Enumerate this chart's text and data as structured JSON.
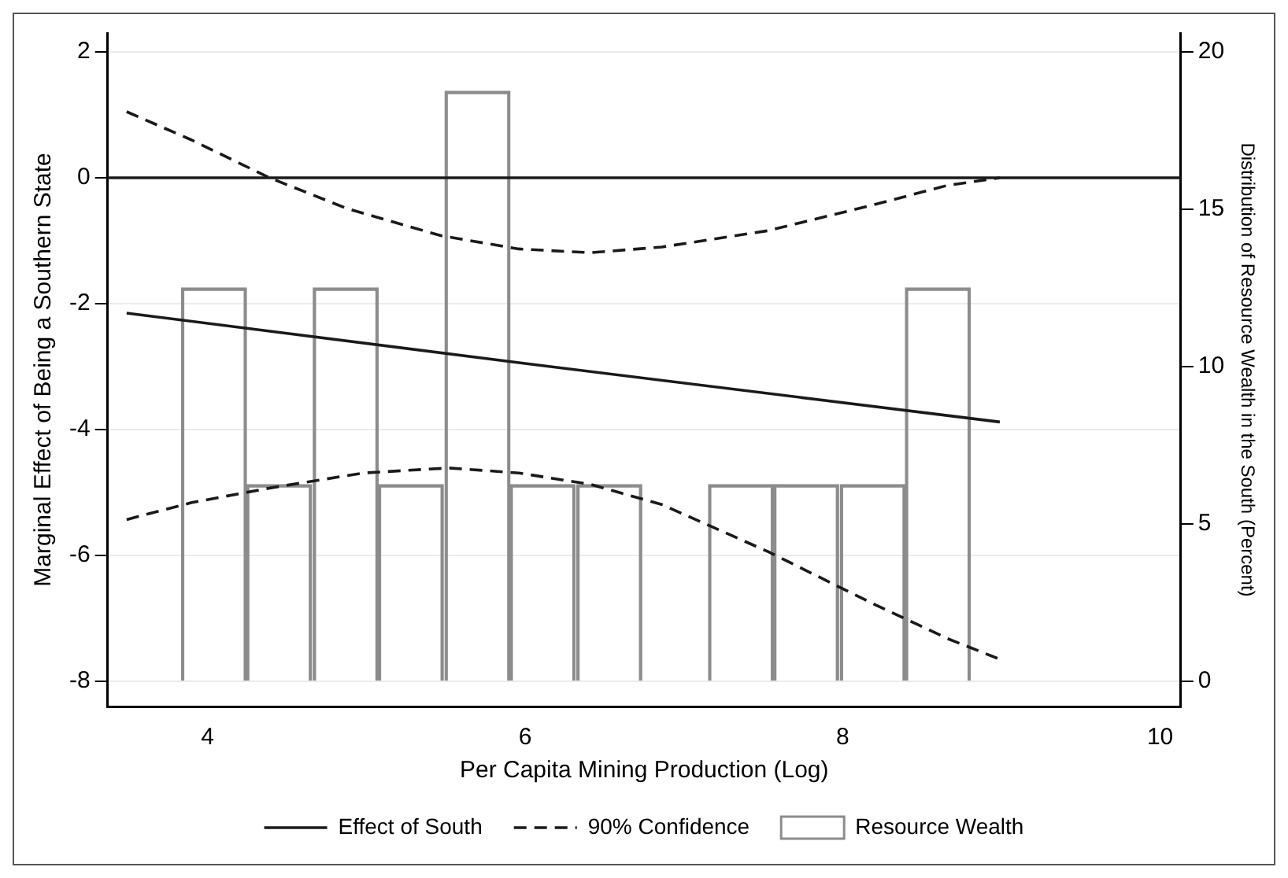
{
  "chart_data": {
    "type": "line",
    "xlabel": "Per Capita Mining Production (Log)",
    "ylabel": "Marginal Effect of Being a Southern State",
    "y2label": "Distribution of Resource Wealth in the South (Percent)",
    "xlim": [
      3.37,
      10.13
    ],
    "xticks": [
      4,
      6,
      8,
      10
    ],
    "ylim": [
      -8.4,
      2.3
    ],
    "yticks": [
      -8,
      -6,
      -4,
      -2,
      0,
      2
    ],
    "y2lim": [
      -0.8,
      20.6
    ],
    "y2ticks": [
      0,
      5,
      10,
      15,
      20
    ],
    "grid": "y",
    "legend": "bottom",
    "ref_lines": [
      {
        "axis": "y",
        "value": 0,
        "color": "#1a1a1a",
        "line_style": "solid"
      }
    ],
    "series": [
      {
        "type": "bar",
        "name": "Resource Wealth",
        "color": "#8c8c8c",
        "axis": "y2",
        "x": [
          4.04,
          4.45,
          4.87,
          5.28,
          5.7,
          6.11,
          6.53,
          6.94,
          7.36,
          7.77,
          8.19,
          8.6
        ],
        "values": [
          12.5,
          6.25,
          12.5,
          6.25,
          18.75,
          6.25,
          6.25,
          0,
          6.25,
          6.25,
          6.25,
          12.5
        ]
      },
      {
        "name": "Effect of South",
        "color": "#1a1a1a",
        "line_style": "solid",
        "x": [
          3.49,
          6.0,
          8.99
        ],
        "values": [
          -2.15,
          -2.95,
          -3.88
        ]
      },
      {
        "name": "90% Confidence",
        "color": "#1a1a1a",
        "line_style": "dashed",
        "x": [
          3.49,
          3.9,
          4.39,
          4.88,
          5.47,
          5.96,
          6.41,
          6.86,
          7.53,
          8.21,
          8.66,
          8.99
        ],
        "values": [
          1.05,
          0.6,
          0.0,
          -0.49,
          -0.92,
          -1.13,
          -1.19,
          -1.1,
          -0.84,
          -0.42,
          -0.12,
          0.0
        ]
      },
      {
        "color": "#1a1a1a",
        "line_style": "dashed",
        "x": [
          3.49,
          3.9,
          4.39,
          4.98,
          5.52,
          5.96,
          6.41,
          6.86,
          7.53,
          8.21,
          8.66,
          8.99
        ],
        "values": [
          -5.43,
          -5.16,
          -4.93,
          -4.69,
          -4.61,
          -4.69,
          -4.87,
          -5.19,
          -5.94,
          -6.79,
          -7.32,
          -7.65
        ]
      }
    ]
  }
}
